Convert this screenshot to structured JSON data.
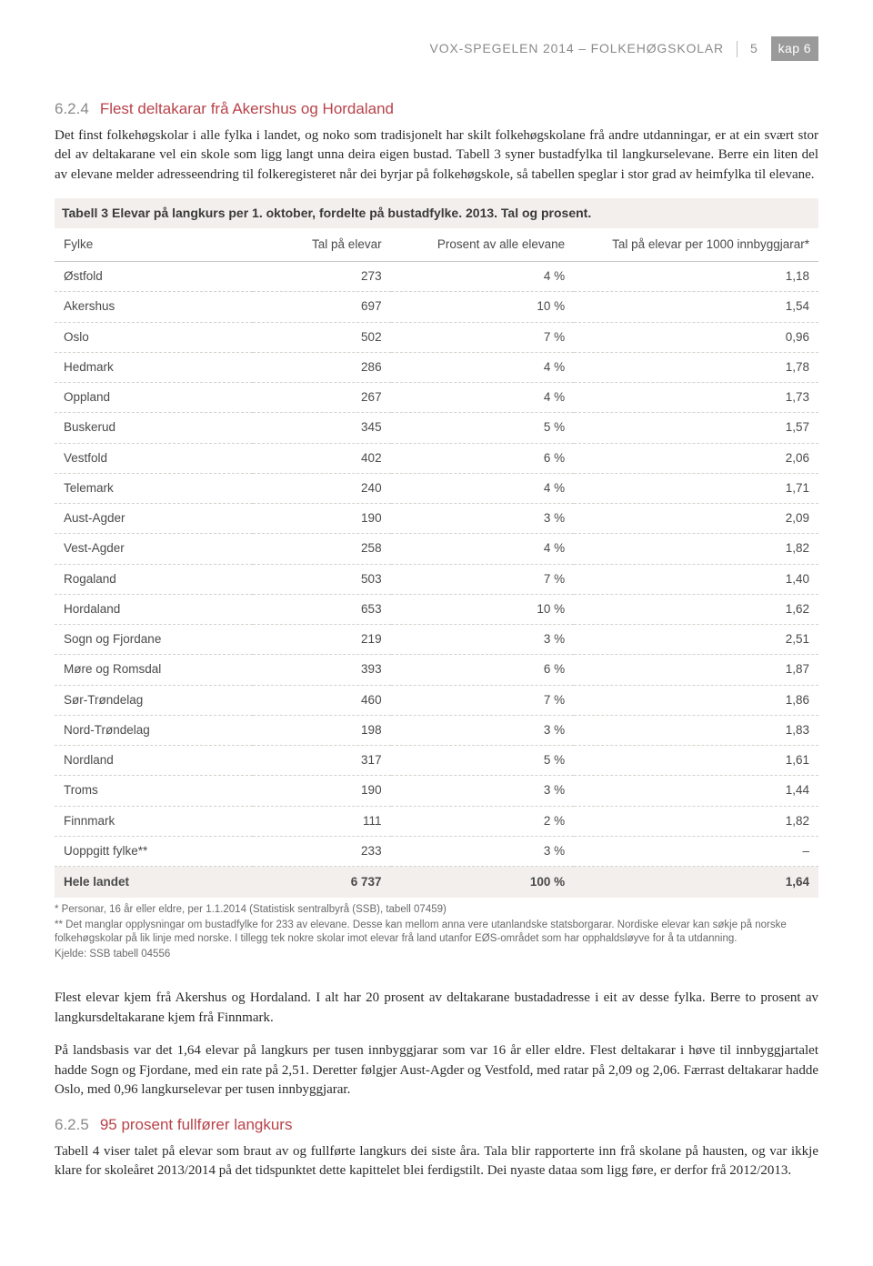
{
  "header": {
    "doc_title": "VOX-SPEGELEN 2014 – FOLKEHØGSKOLAR",
    "page_num": "5",
    "kap_label": "kap 6"
  },
  "section1": {
    "number": "6.2.4",
    "title": "Flest deltakarar frå Akershus og Hordaland",
    "para": "Det finst folkehøgskolar i alle fylka i landet, og noko som tradisjonelt har skilt folkehøgskolane frå andre utdanningar, er at ein svært stor del av deltakarane vel ein skole som ligg langt unna deira eigen bustad. Tabell 3 syner bustadfylka til langkurselevane. Berre ein liten del av elevane melder adresseendring til folkeregisteret når dei byrjar på folkehøgskole, så tabellen speglar i stor grad av heimfylka til elevane."
  },
  "table3": {
    "caption": "Tabell 3 Elevar på langkurs per 1. oktober, fordelte på bustadfylke. 2013. Tal og prosent.",
    "columns": [
      "Fylke",
      "Tal på elevar",
      "Prosent av alle elevane",
      "Tal på elevar per 1000 innbyggjarar*"
    ],
    "rows": [
      [
        "Østfold",
        "273",
        "4 %",
        "1,18"
      ],
      [
        "Akershus",
        "697",
        "10 %",
        "1,54"
      ],
      [
        "Oslo",
        "502",
        "7 %",
        "0,96"
      ],
      [
        "Hedmark",
        "286",
        "4 %",
        "1,78"
      ],
      [
        "Oppland",
        "267",
        "4 %",
        "1,73"
      ],
      [
        "Buskerud",
        "345",
        "5 %",
        "1,57"
      ],
      [
        "Vestfold",
        "402",
        "6 %",
        "2,06"
      ],
      [
        "Telemark",
        "240",
        "4 %",
        "1,71"
      ],
      [
        "Aust-Agder",
        "190",
        "3 %",
        "2,09"
      ],
      [
        "Vest-Agder",
        "258",
        "4 %",
        "1,82"
      ],
      [
        "Rogaland",
        "503",
        "7 %",
        "1,40"
      ],
      [
        "Hordaland",
        "653",
        "10 %",
        "1,62"
      ],
      [
        "Sogn og Fjordane",
        "219",
        "3 %",
        "2,51"
      ],
      [
        "Møre og Romsdal",
        "393",
        "6 %",
        "1,87"
      ],
      [
        "Sør-Trøndelag",
        "460",
        "7 %",
        "1,86"
      ],
      [
        "Nord-Trøndelag",
        "198",
        "3 %",
        "1,83"
      ],
      [
        "Nordland",
        "317",
        "5 %",
        "1,61"
      ],
      [
        "Troms",
        "190",
        "3 %",
        "1,44"
      ],
      [
        "Finnmark",
        "111",
        "2 %",
        "1,82"
      ],
      [
        "Uoppgitt fylke**",
        "233",
        "3 %",
        "–"
      ]
    ],
    "total": [
      "Hele landet",
      "6 737",
      "100 %",
      "1,64"
    ]
  },
  "footnotes": {
    "fn1": "* Personar, 16 år eller eldre, per 1.1.2014 (Statistisk sentralbyrå (SSB), tabell 07459)",
    "fn2": "** Det manglar opplysningar om bustadfylke for 233 av elevane. Desse kan mellom anna vere utanlandske statsborgarar. Nordiske elevar kan søkje på norske folkehøgskolar på lik linje med norske. I tillegg tek nokre skolar imot elevar frå land utanfor EØS-området som har opphaldsløyve for å ta utdanning.",
    "source": "Kjelde: SSB tabell 04556"
  },
  "body_paras": {
    "p1": "Flest elevar kjem frå Akershus og Hordaland. I alt har 20 prosent av deltakarane bustadadresse i eit av desse fylka. Berre to prosent av langkursdeltakarane kjem frå Finnmark.",
    "p2": "På landsbasis var det 1,64 elevar på langkurs per tusen innbyggjarar som var 16 år eller eldre. Flest deltakarar i høve til innbyggjartalet hadde Sogn og Fjordane, med ein rate på 2,51. Deretter følgjer Aust-Agder og Vestfold, med ratar på 2,09 og 2,06. Færrast deltakarar hadde Oslo, med 0,96 langkurselevar per tusen innbyggjarar."
  },
  "section2": {
    "number": "6.2.5",
    "title": "95 prosent fullfører langkurs",
    "para": "Tabell 4 viser talet på elevar som braut av og fullførte langkurs dei siste åra. Tala blir rapporterte inn frå skolane på hausten, og var ikkje klare for skoleåret 2013/2014 på det tidspunktet dette kapittelet blei ferdigstilt. Dei nyaste dataa som ligg føre, er derfor frå 2012/2013."
  }
}
